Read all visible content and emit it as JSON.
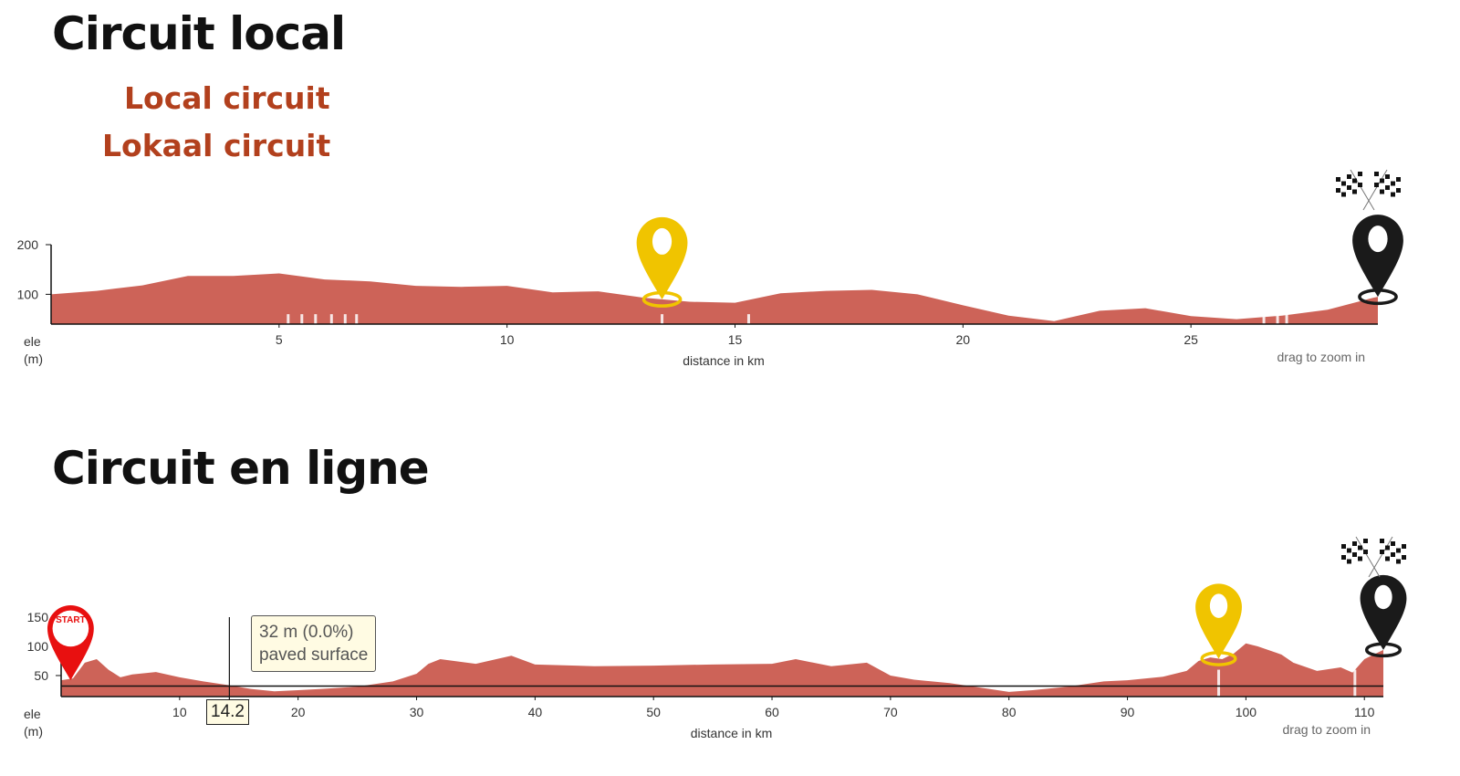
{
  "colors": {
    "area": "#cd6358",
    "title": "#b2401d",
    "pin_yellow": "#f0c400",
    "pin_black": "#1a1a1a",
    "pin_start": "#e81010"
  },
  "section1": {
    "title": "Circuit local",
    "subtitle_en": "Local circuit",
    "subtitle_nl": "Lokaal circuit"
  },
  "section2": {
    "title": "Circuit en ligne"
  },
  "tooltip": {
    "line1": "32 m (0.0%)",
    "line2": "paved surface",
    "x_value": "14.2"
  },
  "start_label": "START",
  "chart_data": [
    {
      "type": "area",
      "xlabel": "distance in km",
      "ylabel": "ele",
      "yunit": "(m)",
      "hint": "drag to zoom in",
      "xlim": [
        0,
        29.1
      ],
      "ylim": [
        40,
        200
      ],
      "xticks": [
        5,
        10,
        15,
        20,
        25
      ],
      "yticks": [
        100,
        200
      ],
      "x": [
        0,
        1,
        2,
        3,
        4,
        5,
        6,
        7,
        8,
        9,
        10,
        11,
        12,
        13,
        14,
        15,
        16,
        17,
        18,
        19,
        20,
        21,
        22,
        23,
        24,
        25,
        26,
        27,
        28,
        29,
        29.1
      ],
      "y": [
        100,
        107,
        118,
        137,
        137,
        142,
        130,
        126,
        117,
        115,
        117,
        104,
        106,
        93,
        85,
        83,
        102,
        107,
        109,
        100,
        78,
        57,
        46,
        67,
        72,
        56,
        50,
        57,
        69,
        93,
        95
      ],
      "surface_breaks_km": [
        5.2,
        5.5,
        5.8,
        6.15,
        6.45,
        6.7,
        13.4,
        15.3,
        26.6,
        26.9,
        27.1
      ],
      "markers": [
        {
          "type": "checkpoint",
          "km": 13.4,
          "color": "yellow"
        },
        {
          "type": "finish",
          "km": 29.1,
          "color": "black"
        }
      ]
    },
    {
      "type": "area",
      "xlabel": "distance in km",
      "ylabel": "ele",
      "yunit": "(m)",
      "hint": "drag to zoom in",
      "xlim": [
        0,
        111.6
      ],
      "ylim": [
        14,
        150
      ],
      "xticks": [
        10,
        20,
        30,
        40,
        50,
        60,
        70,
        80,
        90,
        100,
        110
      ],
      "yticks": [
        50,
        100,
        150
      ],
      "x": [
        0,
        1,
        2,
        3,
        4,
        5,
        6,
        8,
        10,
        12,
        14,
        16,
        18,
        20,
        22,
        25,
        28,
        30,
        31,
        32,
        35,
        38,
        40,
        45,
        50,
        55,
        60,
        62,
        65,
        68,
        70,
        72,
        75,
        78,
        80,
        82,
        85,
        88,
        90,
        93,
        95,
        96,
        97,
        98,
        99,
        100,
        101,
        103,
        104,
        106,
        108,
        109,
        110,
        111,
        111.6
      ],
      "y": [
        42,
        45,
        72,
        78,
        60,
        47,
        52,
        56,
        47,
        40,
        34,
        27,
        23,
        25,
        27,
        31,
        40,
        53,
        70,
        78,
        70,
        84,
        69,
        66,
        67,
        69,
        70,
        78,
        66,
        72,
        50,
        43,
        37,
        28,
        22,
        25,
        31,
        40,
        42,
        48,
        58,
        75,
        81,
        78,
        88,
        105,
        100,
        86,
        72,
        58,
        64,
        55,
        78,
        88,
        94
      ],
      "reference_line": 32,
      "crosshair_km": 14.2,
      "surface_breaks_km": [
        97.7,
        109.2
      ],
      "markers": [
        {
          "type": "start",
          "km": 0.8,
          "color": "red"
        },
        {
          "type": "checkpoint",
          "km": 97.7,
          "color": "yellow"
        },
        {
          "type": "finish",
          "km": 111.6,
          "color": "black"
        }
      ]
    }
  ]
}
